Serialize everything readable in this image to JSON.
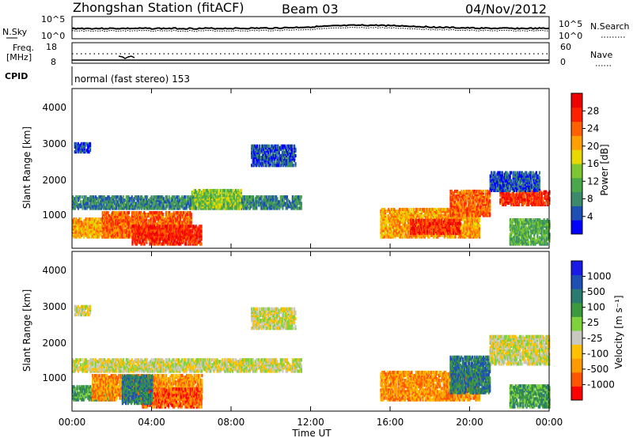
{
  "header": {
    "title": "Zhongshan Station (fitACF)",
    "beam": "Beam 03",
    "date": "04/Nov/2012"
  },
  "noise_panel": {
    "left_label": "N.Sky",
    "right_label": "N.Search",
    "left_ticks": [
      "10^5",
      "10^0"
    ],
    "right_ticks": [
      "10^5",
      "10^0"
    ]
  },
  "freq_panel": {
    "left_label": "Freq.",
    "left_unit": "[MHz]",
    "left_ticks": [
      "18",
      "8"
    ],
    "right_label": "Nave",
    "right_ticks": [
      "60",
      "0"
    ]
  },
  "cpid": {
    "label": "CPID",
    "value": "normal (fast stereo) 153"
  },
  "power_panel": {
    "ylabel": "Slant Range [km]",
    "yticks": [
      "4000",
      "3000",
      "2000",
      "1000"
    ],
    "colorbar_label": "Power [dB]",
    "colorbar_ticks": [
      "28",
      "24",
      "20",
      "16",
      "12",
      "8",
      "4"
    ],
    "colors": [
      "#0000ff",
      "#1e4fb4",
      "#3b8a6c",
      "#4aa74a",
      "#7dc832",
      "#e8d800",
      "#ffa000",
      "#ff6000",
      "#ff2000",
      "#ee0000"
    ]
  },
  "velocity_panel": {
    "ylabel": "Slant Range [km]",
    "yticks": [
      "4000",
      "3000",
      "2000",
      "1000"
    ],
    "colorbar_label": "Velocity [m s⁻¹]",
    "colorbar_ticks": [
      "1000",
      "500",
      "100",
      "25",
      "-25",
      "-100",
      "-500",
      "-1000"
    ],
    "colors": [
      "#ff0000",
      "#ff5500",
      "#ff9900",
      "#ffc000",
      "#c8c8c0",
      "#7ed23c",
      "#3c9a3c",
      "#2a7a70",
      "#1e50b4",
      "#1a1ae6"
    ]
  },
  "xaxis": {
    "ticks": [
      "00:00",
      "04:00",
      "08:00",
      "12:00",
      "16:00",
      "20:00",
      "00:00"
    ],
    "label": "Time UT"
  },
  "chart_data": {
    "type": "heatmap",
    "x_range_hours": [
      0,
      24
    ],
    "y_range_km": [
      180,
      4650
    ],
    "power_blobs": [
      {
        "t0": 0.1,
        "t1": 0.9,
        "r0": 2880,
        "r1": 3120,
        "level": 1
      },
      {
        "t0": 9.0,
        "t1": 11.2,
        "r0": 2500,
        "r1": 3050,
        "level": 1
      },
      {
        "t0": 0.0,
        "t1": 11.5,
        "r0": 1300,
        "r1": 1650,
        "level": 2
      },
      {
        "t0": 0.0,
        "t1": 3.5,
        "r0": 500,
        "r1": 1000,
        "level": 6
      },
      {
        "t0": 1.5,
        "t1": 6.0,
        "r0": 500,
        "r1": 1200,
        "level": 7
      },
      {
        "t0": 3.0,
        "t1": 6.5,
        "r0": 300,
        "r1": 800,
        "level": 8
      },
      {
        "t0": 6.0,
        "t1": 8.5,
        "r0": 1300,
        "r1": 1800,
        "level": 4
      },
      {
        "t0": 15.5,
        "t1": 20.5,
        "r0": 500,
        "r1": 1300,
        "level": 6
      },
      {
        "t0": 17.0,
        "t1": 19.5,
        "r0": 600,
        "r1": 1000,
        "level": 8
      },
      {
        "t0": 19.0,
        "t1": 21.0,
        "r0": 1100,
        "r1": 1800,
        "level": 7
      },
      {
        "t0": 21.5,
        "t1": 24.0,
        "r0": 1400,
        "r1": 1800,
        "level": 8
      },
      {
        "t0": 21.0,
        "t1": 23.5,
        "r0": 1800,
        "r1": 2300,
        "level": 1
      },
      {
        "t0": 22.0,
        "t1": 24.0,
        "r0": 300,
        "r1": 1000,
        "level": 3
      }
    ],
    "velocity_blobs": [
      {
        "t0": 0.1,
        "t1": 0.9,
        "r0": 2880,
        "r1": 3120,
        "level": 4
      },
      {
        "t0": 9.0,
        "t1": 11.2,
        "r0": 2500,
        "r1": 3050,
        "level": 4
      },
      {
        "t0": 0.0,
        "t1": 11.5,
        "r0": 1300,
        "r1": 1650,
        "level": 4
      },
      {
        "t0": 0.0,
        "t1": 2.0,
        "r0": 500,
        "r1": 900,
        "level": 6
      },
      {
        "t0": 1.0,
        "t1": 6.5,
        "r0": 500,
        "r1": 1200,
        "level": 2
      },
      {
        "t0": 3.5,
        "t1": 6.5,
        "r0": 300,
        "r1": 800,
        "level": 1
      },
      {
        "t0": 2.5,
        "t1": 4.0,
        "r0": 400,
        "r1": 1200,
        "level": 7
      },
      {
        "t0": 15.5,
        "t1": 20.5,
        "r0": 500,
        "r1": 1300,
        "level": 2
      },
      {
        "t0": 19.0,
        "t1": 21.0,
        "r0": 700,
        "r1": 1700,
        "level": 7
      },
      {
        "t0": 21.0,
        "t1": 24.0,
        "r0": 1500,
        "r1": 2300,
        "level": 4
      },
      {
        "t0": 22.0,
        "t1": 24.0,
        "r0": 300,
        "r1": 900,
        "level": 6
      }
    ]
  }
}
